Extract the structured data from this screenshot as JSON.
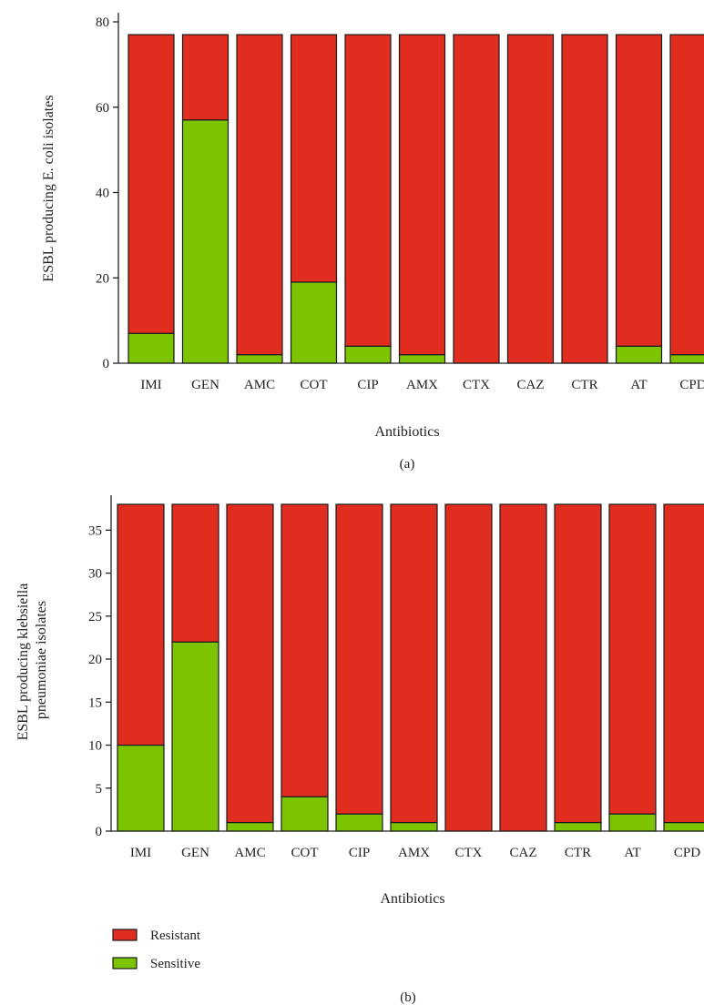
{
  "colors": {
    "resistant": "#e02d1f",
    "sensitive": "#7cc300",
    "axis": "#222222",
    "bar_stroke": "#1a1a1a"
  },
  "legend": {
    "resistant_label": "Resistant",
    "sensitive_label": "Sensitive"
  },
  "chart_data": [
    {
      "type": "bar",
      "stacked": true,
      "panel_label": "(a)",
      "xlabel": "Antibiotics",
      "ylabel": "ESBL producing E. coli isolates",
      "ylim": [
        0,
        80
      ],
      "yticks": [
        0,
        20,
        40,
        60,
        80
      ],
      "categories": [
        "IMI",
        "GEN",
        "AMC",
        "COT",
        "CIP",
        "AMX",
        "CTX",
        "CAZ",
        "CTR",
        "AT",
        "CPD"
      ],
      "series": [
        {
          "name": "Sensitive",
          "values": [
            7,
            57,
            2,
            19,
            4,
            2,
            0,
            0,
            0,
            4,
            2
          ]
        },
        {
          "name": "Resistant",
          "values": [
            70,
            20,
            75,
            58,
            73,
            75,
            77,
            77,
            77,
            73,
            75
          ]
        }
      ]
    },
    {
      "type": "bar",
      "stacked": true,
      "panel_label": "(b)",
      "xlabel": "Antibiotics",
      "ylabel": "ESBL producing klebsiella pneumoniae isolates",
      "ylabel_lines": [
        "ESBL producing klebsiella",
        "pneumoniae isolates"
      ],
      "ylim": [
        0,
        38
      ],
      "yticks": [
        0,
        5,
        10,
        15,
        20,
        25,
        30,
        35
      ],
      "categories": [
        "IMI",
        "GEN",
        "AMC",
        "COT",
        "CIP",
        "AMX",
        "CTX",
        "CAZ",
        "CTR",
        "AT",
        "CPD"
      ],
      "series": [
        {
          "name": "Sensitive",
          "values": [
            10,
            22,
            1,
            4,
            2,
            1,
            0,
            0,
            1,
            2,
            1
          ]
        },
        {
          "name": "Resistant",
          "values": [
            28,
            16,
            37,
            34,
            36,
            37,
            38,
            38,
            37,
            36,
            37
          ]
        }
      ]
    }
  ]
}
